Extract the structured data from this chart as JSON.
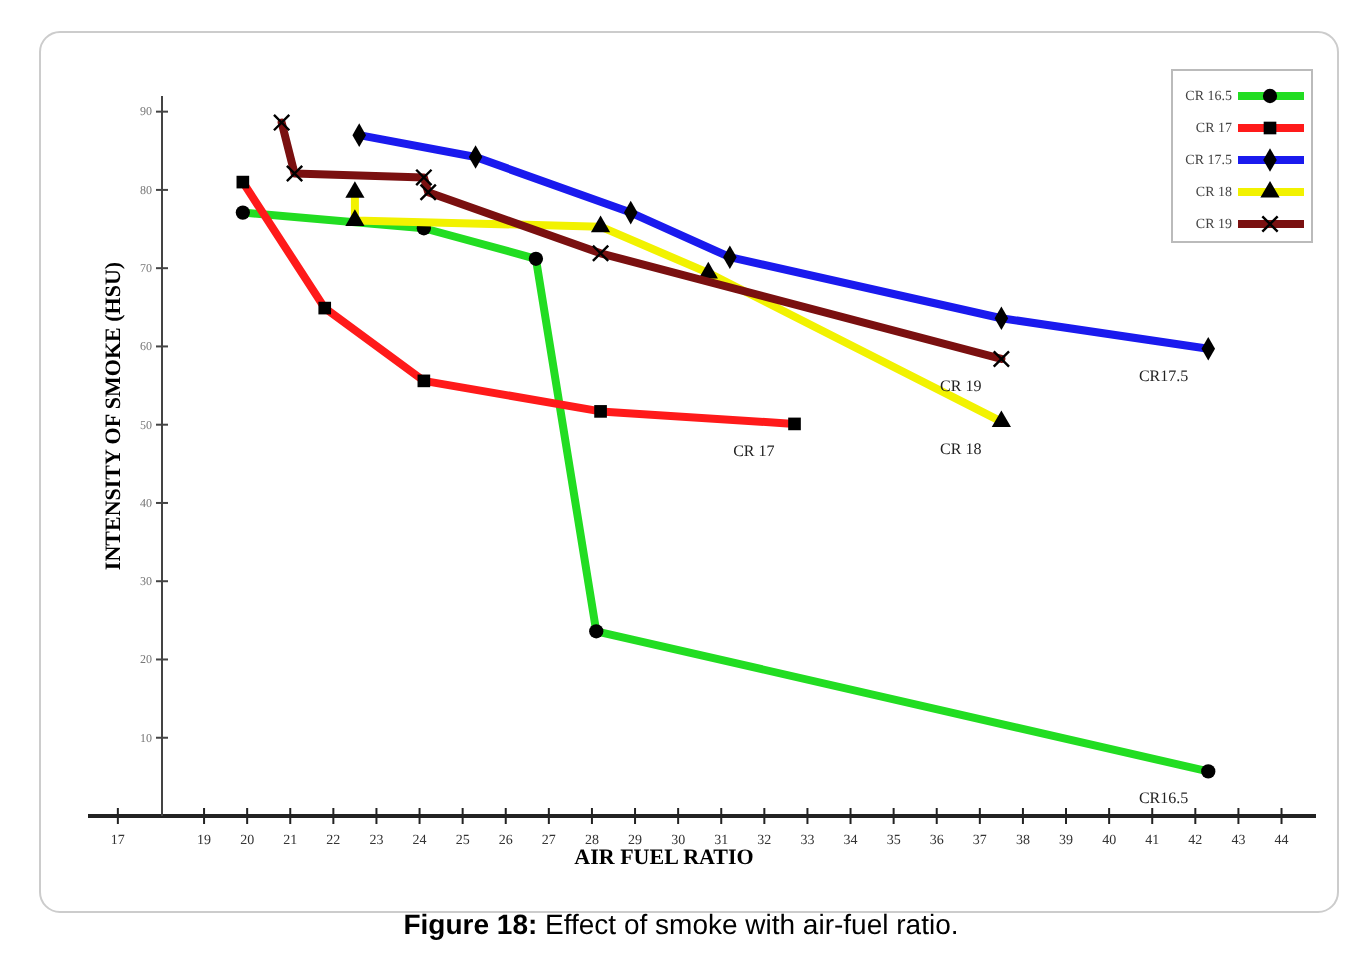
{
  "chart_data": {
    "type": "line",
    "title": "Figure 18: Effect of smoke with air-fuel ratio.",
    "xlabel": "AIR FUEL RATIO",
    "ylabel": "INTENSITY OF SMOKE (HSU)",
    "xlim": [
      16.4,
      44.8
    ],
    "xticks": [
      17,
      19,
      20,
      21,
      22,
      23,
      24,
      25,
      26,
      27,
      28,
      29,
      30,
      31,
      32,
      33,
      34,
      35,
      36,
      37,
      38,
      39,
      40,
      41,
      42,
      43,
      44
    ],
    "ylim": [
      0,
      92
    ],
    "yticks": [
      10,
      20,
      30,
      40,
      50,
      60,
      70,
      80,
      90
    ],
    "legend": "top right",
    "grid": false,
    "series": [
      {
        "name": "CR 16.5",
        "color": "#22dd22",
        "marker": "circle",
        "x": [
          19.9,
          22.5,
          24.1,
          26.7,
          28.1,
          42.3
        ],
        "values": [
          77.1,
          null,
          75.1,
          71.2,
          23.6,
          5.7
        ]
      },
      {
        "name": "CR 17",
        "color": "#ff1a1a",
        "marker": "square",
        "x": [
          19.9,
          21.8,
          24.1,
          28.2,
          32.7
        ],
        "values": [
          81.0,
          64.9,
          55.6,
          51.7,
          50.1
        ]
      },
      {
        "name": "CR 17.5",
        "color": "#1a1aee",
        "marker": "diamond",
        "x": [
          22.6,
          25.3,
          28.9,
          31.2,
          37.5,
          42.3
        ],
        "values": [
          87.0,
          84.2,
          77.1,
          71.4,
          63.6,
          59.7
        ]
      },
      {
        "name": "CR 18",
        "color": "#f2f200",
        "marker": "triangle",
        "x": [
          22.5,
          22.5,
          28.2,
          30.7,
          37.5
        ],
        "values": [
          79.7,
          76.1,
          75.3,
          69.4,
          50.4
        ]
      },
      {
        "name": "CR 19",
        "color": "#7a1010",
        "marker": "cross",
        "x": [
          20.8,
          21.1,
          24.1,
          24.2,
          28.2,
          37.5
        ],
        "values": [
          88.6,
          82.1,
          81.6,
          79.7,
          71.9,
          58.4
        ]
      }
    ],
    "annotations": [
      {
        "text": "CR16.5",
        "x": 42.3,
        "y": 5.7
      },
      {
        "text": "CR 17",
        "x": 32.7,
        "y": 50.1
      },
      {
        "text": "CR17.5",
        "x": 42.3,
        "y": 59.7
      },
      {
        "text": "CR 18",
        "x": 37.5,
        "y": 50.4
      },
      {
        "text": "CR 19",
        "x": 37.5,
        "y": 58.4
      }
    ]
  }
}
